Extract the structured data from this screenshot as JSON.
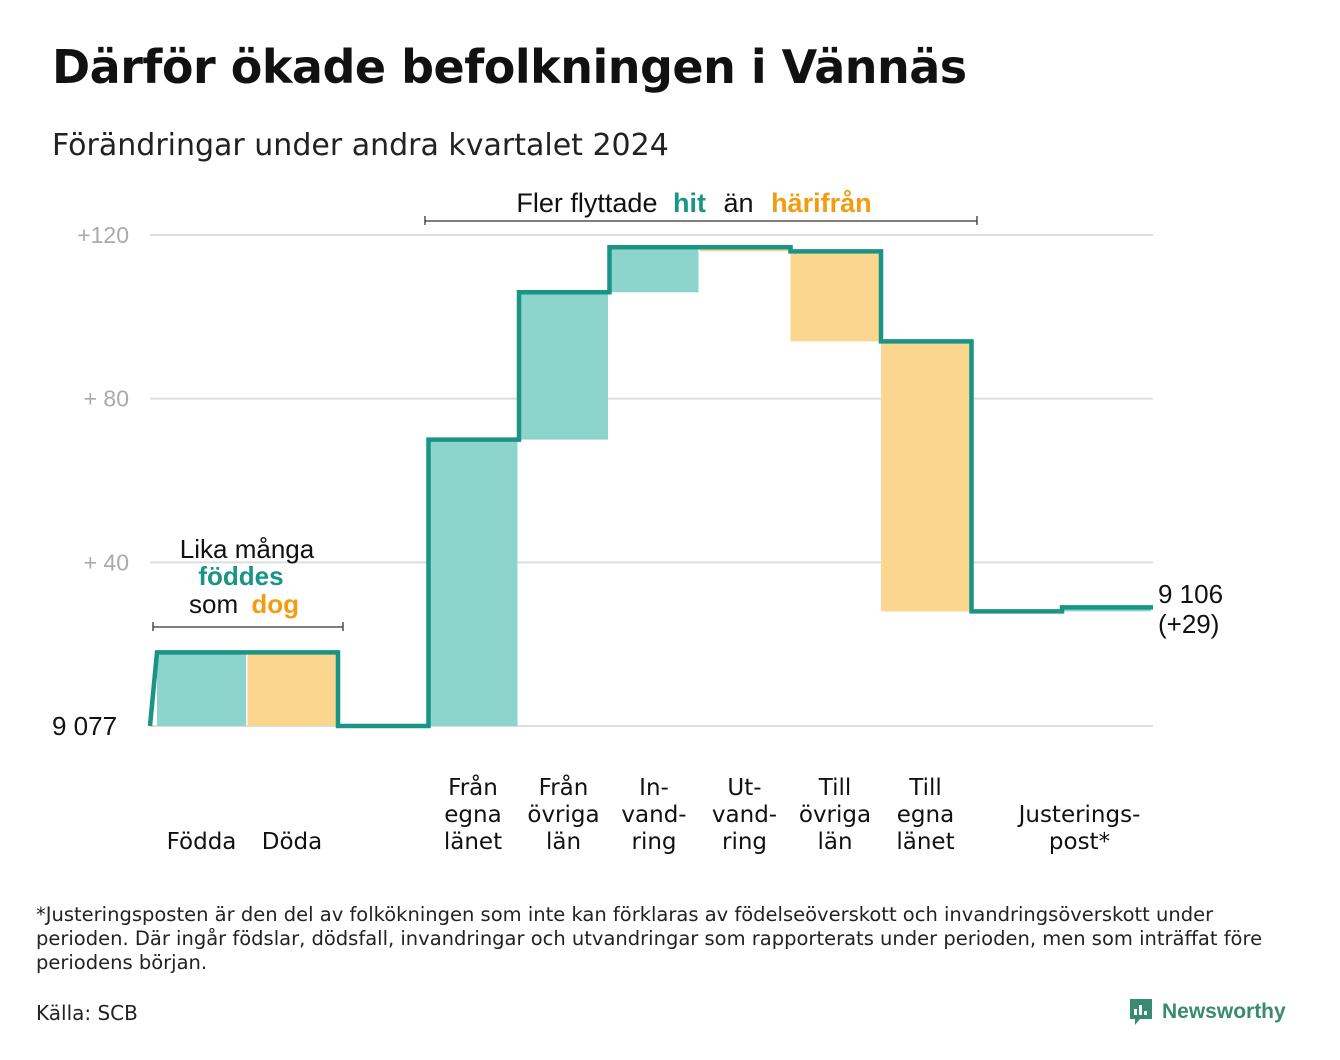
{
  "title": "Därför ökade befolkningen i Vännäs",
  "subtitle": "Förändringar under andra kvartalet 2024",
  "colors": {
    "increase": "#8dd5cc",
    "decrease": "#fbd68f",
    "line": "#1a9485",
    "teal_text": "#1a9485",
    "orange_text": "#f39c12",
    "grid": "#dddddd",
    "tick_label": "#aaaaaa"
  },
  "annotations": {
    "migration": {
      "text1": "Fler flyttade",
      "hit": "hit",
      "text2": "än",
      "harifran": "härifrån"
    },
    "births": {
      "line1": "Lika många",
      "foddes": "föddes",
      "som": "som",
      "dog": "dog"
    }
  },
  "end_label": {
    "line1": "9 106",
    "line2": "(+29)"
  },
  "footnote": "*Justeringsposten är den del av folkökningen som inte kan förklaras av födelseöverskott och invandringsöverskott under perioden. Där ingår födslar, dödsfall, invandringar och utvandringar som rapporterats under perioden, men som inträffat före periodens början.",
  "source": "Källa: SCB",
  "brand": {
    "name": "Newsworthy",
    "icon": "newsworthy-logo-icon"
  },
  "chart_data": {
    "type": "waterfall",
    "base_value": 9077,
    "base_label": "9  077",
    "end_value": 9106,
    "ylim": [
      0,
      120
    ],
    "y_ticks": [
      {
        "value": 40,
        "label": "+  40"
      },
      {
        "value": 80,
        "label": "+  80"
      },
      {
        "value": 120,
        "label": "+120"
      }
    ],
    "grid": true,
    "steps": [
      {
        "category": [
          "Födda"
        ],
        "change": 18
      },
      {
        "category": [
          "Döda"
        ],
        "change": -18
      },
      {
        "category": [],
        "change": 0
      },
      {
        "category": [
          "Från",
          "egna",
          "länet"
        ],
        "change": 70
      },
      {
        "category": [
          "Från",
          "övriga",
          "län"
        ],
        "change": 36
      },
      {
        "category": [
          "In-",
          "vand-",
          "ring"
        ],
        "change": 11
      },
      {
        "category": [
          "Ut-",
          "vand-",
          "ring"
        ],
        "change": -1
      },
      {
        "category": [
          "Till",
          "övriga",
          "län"
        ],
        "change": -22
      },
      {
        "category": [
          "Till",
          "egna",
          "länet"
        ],
        "change": -66
      },
      {
        "category": [],
        "change": 0
      },
      {
        "category": [
          "Justerings-",
          "post*"
        ],
        "change": 1
      }
    ]
  }
}
